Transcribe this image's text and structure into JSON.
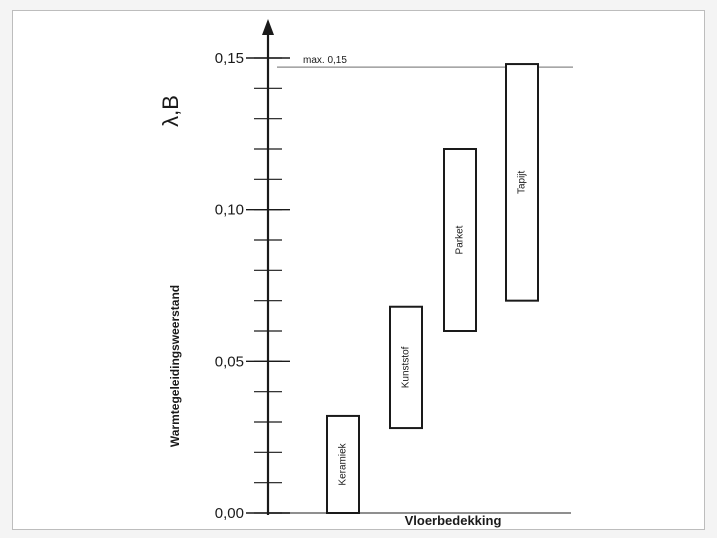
{
  "chart_data": {
    "type": "bar",
    "subtype": "floating-range",
    "y_axis_symbol": "λ,B",
    "ylabel": "Warmtegeleidingsweerstand",
    "xlabel": "Vloerbedekking",
    "ylim": [
      0.0,
      0.15
    ],
    "y_ticks": [
      {
        "value": 0.0,
        "label": "0,00"
      },
      {
        "value": 0.05,
        "label": "0,05"
      },
      {
        "value": 0.1,
        "label": "0,10"
      },
      {
        "value": 0.15,
        "label": "0,15"
      }
    ],
    "minor_tick_step": 0.01,
    "reference_line": {
      "value": 0.147,
      "label": "max. 0,15"
    },
    "grid": false,
    "bars": [
      {
        "label": "Keramiek",
        "low": 0.0,
        "high": 0.032
      },
      {
        "label": "Kunststof",
        "low": 0.028,
        "high": 0.068
      },
      {
        "label": "Parket",
        "low": 0.06,
        "high": 0.12
      },
      {
        "label": "Tapijt",
        "low": 0.07,
        "high": 0.148
      }
    ]
  },
  "colors": {
    "ink": "#1a1a1a",
    "line": "#8a8a8a",
    "frame": "#bdbdbd"
  }
}
